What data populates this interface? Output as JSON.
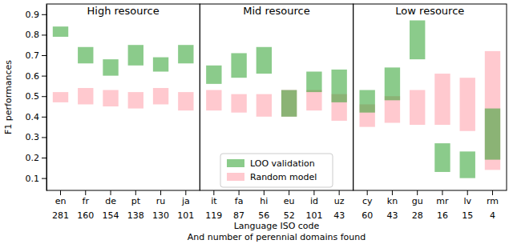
{
  "chart_data": {
    "type": "bar",
    "y_label": "F1 performances",
    "x_label": [
      "Language ISO code",
      "And number of perennial domains found"
    ],
    "ylim": [
      0.04,
      0.95
    ],
    "yticks": [
      0.1,
      0.2,
      0.3,
      0.4,
      0.5,
      0.6,
      0.7,
      0.8,
      0.9
    ],
    "legend": "bottom",
    "series": [
      {
        "name": "LOO validation",
        "color": "#2ca02c"
      },
      {
        "name": "Random model",
        "color": "#ff9da7"
      }
    ],
    "panels": [
      {
        "title": "High resource",
        "categories": [
          "en",
          "fr",
          "de",
          "pt",
          "ru",
          "ja"
        ],
        "counts": [
          281,
          160,
          154,
          138,
          130,
          101
        ],
        "series": [
          {
            "values": [
              [
                0.79,
                0.84
              ],
              [
                0.66,
                0.74
              ],
              [
                0.6,
                0.68
              ],
              [
                0.65,
                0.75
              ],
              [
                0.62,
                0.69
              ],
              [
                0.66,
                0.75
              ]
            ]
          },
          {
            "values": [
              [
                0.47,
                0.52
              ],
              [
                0.46,
                0.54
              ],
              [
                0.45,
                0.53
              ],
              [
                0.44,
                0.52
              ],
              [
                0.46,
                0.54
              ],
              [
                0.43,
                0.52
              ]
            ]
          }
        ]
      },
      {
        "title": "Mid resource",
        "categories": [
          "it",
          "fa",
          "hi",
          "eu",
          "id",
          "uz"
        ],
        "counts": [
          119,
          87,
          56,
          52,
          101,
          43
        ],
        "series": [
          {
            "values": [
              [
                0.56,
                0.65
              ],
              [
                0.59,
                0.71
              ],
              [
                0.61,
                0.74
              ],
              [
                0.4,
                0.53
              ],
              [
                0.52,
                0.62
              ],
              [
                0.47,
                0.63
              ]
            ]
          },
          {
            "values": [
              [
                0.43,
                0.53
              ],
              [
                0.42,
                0.51
              ],
              [
                0.4,
                0.51
              ],
              [
                0.4,
                0.53
              ],
              [
                0.43,
                0.53
              ],
              [
                0.38,
                0.51
              ]
            ]
          }
        ]
      },
      {
        "title": "Low resource",
        "categories": [
          "cy",
          "kn",
          "gu",
          "mr",
          "lv",
          "rm"
        ],
        "counts": [
          60,
          43,
          28,
          16,
          15,
          4
        ],
        "series": [
          {
            "values": [
              [
                0.42,
                0.53
              ],
              [
                0.48,
                0.64
              ],
              [
                0.68,
                0.87
              ],
              [
                0.13,
                0.27
              ],
              [
                0.1,
                0.23
              ],
              [
                0.19,
                0.44
              ]
            ]
          },
          {
            "values": [
              [
                0.35,
                0.46
              ],
              [
                0.37,
                0.5
              ],
              [
                0.36,
                0.53
              ],
              [
                0.36,
                0.61
              ],
              [
                0.33,
                0.59
              ],
              [
                0.14,
                0.72
              ]
            ]
          }
        ]
      }
    ]
  }
}
